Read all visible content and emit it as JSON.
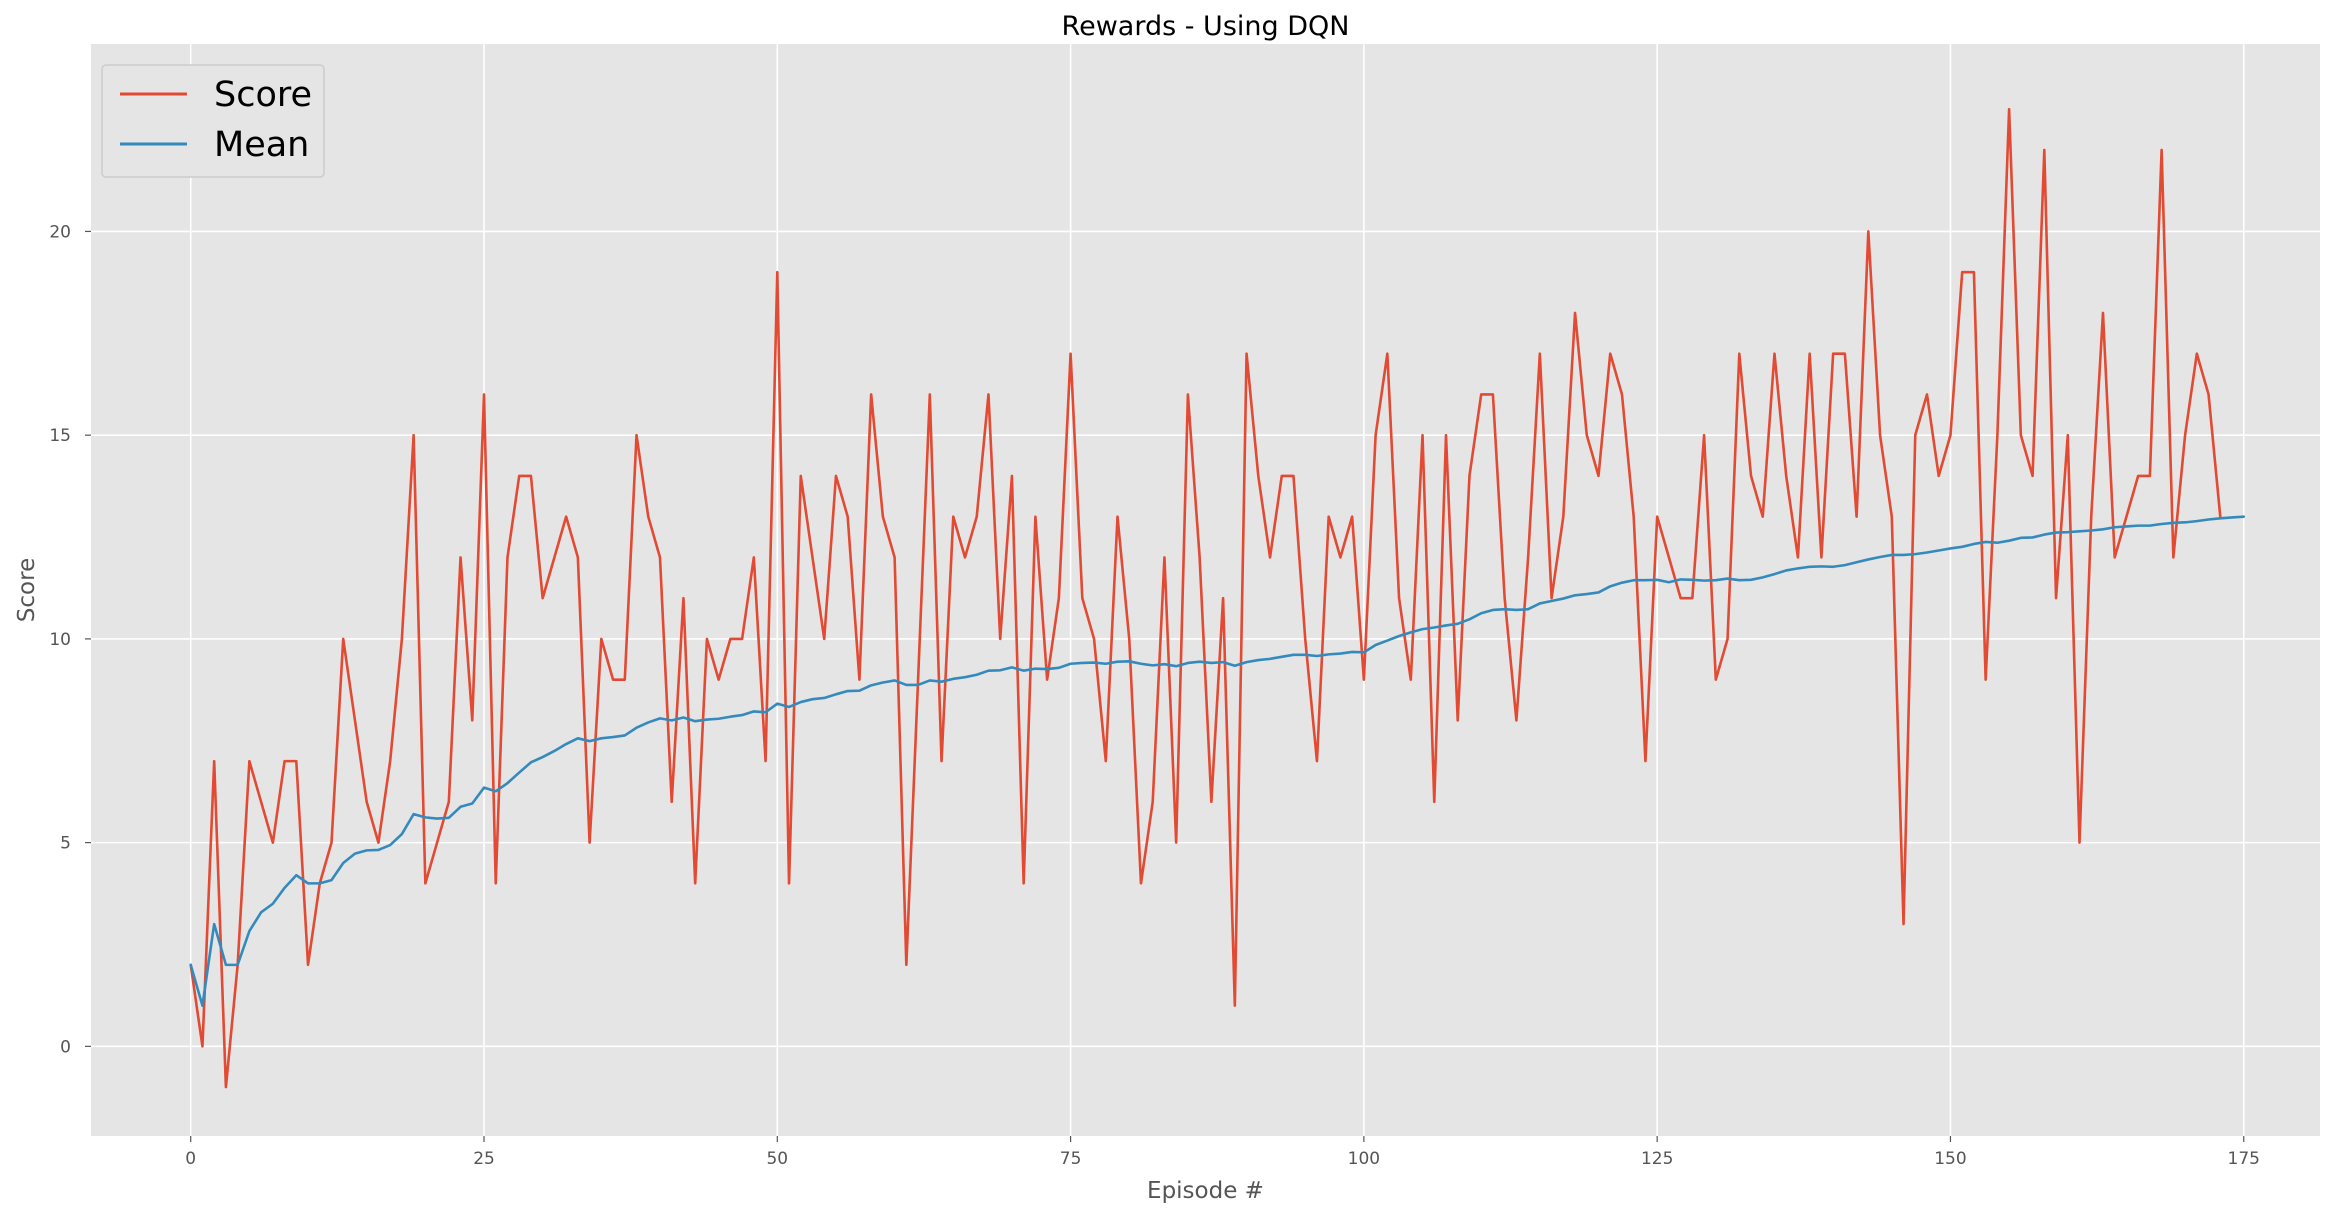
{
  "chart_data": {
    "type": "line",
    "title": "Rewards - Using DQN",
    "xlabel": "Episode #",
    "ylabel": "Score",
    "xlim": [
      -8.5,
      181.5
    ],
    "ylim": [
      -2.2,
      24.6
    ],
    "xticks": [
      0,
      25,
      50,
      75,
      100,
      125,
      150,
      175
    ],
    "yticks": [
      0,
      5,
      10,
      15,
      20
    ],
    "grid": true,
    "legend_position": "top-left",
    "series": [
      {
        "name": "Score",
        "color": "#E24A33",
        "values": [
          2,
          0,
          7,
          -1,
          2,
          7,
          6,
          5,
          7,
          7,
          2,
          4,
          5,
          10,
          8,
          6,
          5,
          7,
          10,
          15,
          4,
          5,
          6,
          12,
          8,
          16,
          4,
          12,
          14,
          14,
          11,
          12,
          13,
          12,
          5,
          10,
          9,
          9,
          15,
          13,
          12,
          6,
          11,
          4,
          10,
          9,
          10,
          10,
          12,
          7,
          19,
          4,
          14,
          12,
          10,
          14,
          13,
          9,
          16,
          13,
          12,
          2,
          9,
          16,
          7,
          13,
          12,
          13,
          16,
          10,
          14,
          4,
          13,
          9,
          11,
          17,
          11,
          10,
          7,
          13,
          10,
          4,
          6,
          12,
          5,
          16,
          12,
          6,
          11,
          1,
          17,
          14,
          12,
          14,
          14,
          10,
          7,
          13,
          12,
          13,
          9,
          15,
          17,
          11,
          9,
          15,
          6,
          15,
          8,
          14,
          16,
          16,
          11,
          8,
          12,
          17,
          11,
          13,
          18,
          15,
          14,
          17,
          16,
          13,
          7,
          13,
          12,
          11,
          11,
          15,
          9,
          10,
          17,
          14,
          13,
          17,
          14,
          12,
          17,
          12,
          17,
          17,
          13,
          20,
          15,
          13,
          3,
          15,
          16,
          14,
          15,
          19,
          19,
          9,
          15,
          23,
          15,
          14,
          22,
          11,
          15,
          5,
          13,
          18,
          12,
          13,
          14,
          14,
          22,
          12,
          15,
          17,
          16,
          13
        ]
      },
      {
        "name": "Mean",
        "color": "#348ABD",
        "values": [
          2,
          1,
          3,
          2,
          2,
          2.83,
          3.29,
          3.5,
          3.89,
          4.2,
          4,
          4,
          4.08,
          4.5,
          4.73,
          4.81,
          4.82,
          4.94,
          5.21,
          5.7,
          5.62,
          5.59,
          5.61,
          5.88,
          5.96,
          6.35,
          6.26,
          6.46,
          6.72,
          6.97,
          7.1,
          7.25,
          7.42,
          7.56,
          7.49,
          7.56,
          7.59,
          7.63,
          7.82,
          7.95,
          8.05,
          8,
          8.07,
          7.98,
          8.02,
          8.04,
          8.09,
          8.13,
          8.22,
          8.2,
          8.41,
          8.33,
          8.45,
          8.52,
          8.55,
          8.64,
          8.72,
          8.73,
          8.86,
          8.93,
          8.98,
          8.87,
          8.87,
          8.98,
          8.95,
          9.02,
          9.06,
          9.12,
          9.22,
          9.23,
          9.3,
          9.22,
          9.27,
          9.26,
          9.29,
          9.39,
          9.41,
          9.42,
          9.39,
          9.44,
          9.45,
          9.39,
          9.35,
          9.38,
          9.33,
          9.41,
          9.44,
          9.41,
          9.43,
          9.34,
          9.43,
          9.48,
          9.51,
          9.56,
          9.61,
          9.61,
          9.58,
          9.62,
          9.64,
          9.68,
          9.67,
          9.85,
          9.96,
          10.07,
          10.16,
          10.24,
          10.28,
          10.33,
          10.37,
          10.48,
          10.63,
          10.71,
          10.73,
          10.71,
          10.73,
          10.87,
          10.93,
          10.99,
          11.07,
          11.1,
          11.14,
          11.29,
          11.38,
          11.44,
          11.44,
          11.45,
          11.39,
          11.46,
          11.45,
          11.43,
          11.44,
          11.48,
          11.44,
          11.45,
          11.51,
          11.59,
          11.68,
          11.73,
          11.77,
          11.78,
          11.77,
          11.81,
          11.88,
          11.95,
          12.01,
          12.06,
          12.06,
          12.08,
          12.12,
          12.17,
          12.22,
          12.26,
          12.33,
          12.38,
          12.36,
          12.41,
          12.48,
          12.49,
          12.56,
          12.61,
          12.62,
          12.64,
          12.66,
          12.69,
          12.74,
          12.76,
          12.78,
          12.78,
          12.82,
          12.85,
          12.86,
          12.89,
          12.93,
          12.96,
          12.98,
          13
        ]
      }
    ]
  }
}
